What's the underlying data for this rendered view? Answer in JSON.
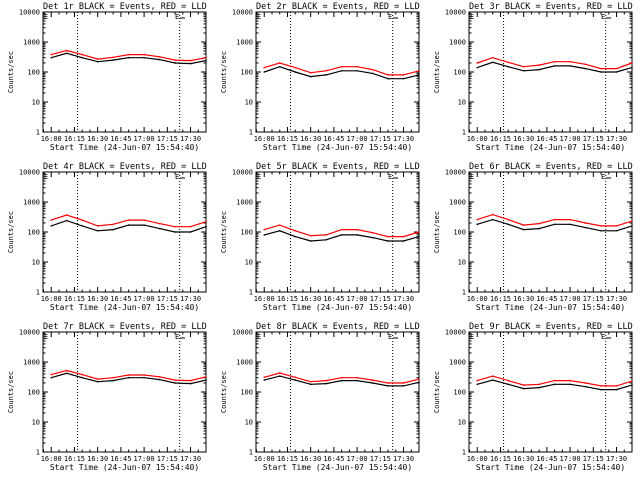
{
  "figure": {
    "x_tick_labels": [
      "16:00",
      "16:15",
      "16:30",
      "16:45",
      "17:00",
      "17:15",
      "17:30"
    ],
    "y_tick_labels": [
      "1",
      "10",
      "100",
      "1000",
      "10000"
    ],
    "ylabel": "Counts/sec",
    "xlabel": "Start Time (24-Jun-07 15:54:40)",
    "marker_label": "E"
  },
  "chart_data": [
    {
      "title": "Det 1r BLACK = Events, RED = LLD",
      "type": "line",
      "ylog": true,
      "ylim": [
        1,
        10000
      ],
      "x_minutes": [
        0,
        10,
        20,
        30,
        40,
        50,
        60,
        70,
        80,
        90,
        100
      ],
      "series": [
        {
          "name": "Events",
          "color": "#000000",
          "values": [
            300,
            420,
            300,
            220,
            250,
            300,
            300,
            260,
            200,
            190,
            240
          ]
        },
        {
          "name": "LLD",
          "color": "#ff0000",
          "values": [
            380,
            520,
            380,
            270,
            310,
            380,
            380,
            320,
            250,
            240,
            300
          ]
        }
      ],
      "vlines_minutes": [
        17,
        83
      ],
      "marker_minutes": 80
    },
    {
      "title": "Det 2r BLACK = Events, RED = LLD",
      "type": "line",
      "ylog": true,
      "ylim": [
        1,
        10000
      ],
      "x_minutes": [
        0,
        10,
        20,
        30,
        40,
        50,
        60,
        70,
        80,
        90,
        100
      ],
      "series": [
        {
          "name": "Events",
          "color": "#000000",
          "values": [
            100,
            150,
            100,
            70,
            80,
            110,
            110,
            90,
            60,
            60,
            80
          ]
        },
        {
          "name": "LLD",
          "color": "#ff0000",
          "values": [
            140,
            200,
            140,
            95,
            110,
            150,
            150,
            120,
            80,
            80,
            110
          ]
        }
      ],
      "vlines_minutes": [
        17,
        83
      ],
      "marker_minutes": 80
    },
    {
      "title": "Det 3r BLACK = Events, RED = LLD",
      "type": "line",
      "ylog": true,
      "ylim": [
        1,
        10000
      ],
      "x_minutes": [
        0,
        10,
        20,
        30,
        40,
        50,
        60,
        70,
        80,
        90,
        100
      ],
      "series": [
        {
          "name": "Events",
          "color": "#000000",
          "values": [
            140,
            210,
            150,
            110,
            120,
            160,
            160,
            130,
            100,
            100,
            140
          ]
        },
        {
          "name": "LLD",
          "color": "#ff0000",
          "values": [
            200,
            300,
            210,
            150,
            170,
            220,
            220,
            180,
            130,
            130,
            200
          ]
        }
      ],
      "vlines_minutes": [
        17,
        83
      ],
      "marker_minutes": 80
    },
    {
      "title": "Det 4r BLACK = Events, RED = LLD",
      "type": "line",
      "ylog": true,
      "ylim": [
        1,
        10000
      ],
      "x_minutes": [
        0,
        10,
        20,
        30,
        40,
        50,
        60,
        70,
        80,
        90,
        100
      ],
      "series": [
        {
          "name": "Events",
          "color": "#000000",
          "values": [
            160,
            240,
            160,
            110,
            120,
            170,
            170,
            130,
            100,
            100,
            150
          ]
        },
        {
          "name": "LLD",
          "color": "#ff0000",
          "values": [
            250,
            370,
            250,
            160,
            180,
            250,
            250,
            190,
            150,
            150,
            220
          ]
        }
      ],
      "vlines_minutes": [
        17,
        83
      ],
      "marker_minutes": 80
    },
    {
      "title": "Det 5r BLACK = Events, RED = LLD",
      "type": "line",
      "ylog": true,
      "ylim": [
        1,
        10000
      ],
      "x_minutes": [
        0,
        10,
        20,
        30,
        40,
        50,
        60,
        70,
        80,
        90,
        100
      ],
      "series": [
        {
          "name": "Events",
          "color": "#000000",
          "values": [
            80,
            110,
            70,
            50,
            55,
            80,
            80,
            65,
            50,
            50,
            70
          ]
        },
        {
          "name": "LLD",
          "color": "#ff0000",
          "values": [
            120,
            170,
            110,
            75,
            80,
            120,
            120,
            95,
            70,
            70,
            100
          ]
        }
      ],
      "vlines_minutes": [
        17,
        83
      ],
      "marker_minutes": 80
    },
    {
      "title": "Det 6r BLACK = Events, RED = LLD",
      "type": "line",
      "ylog": true,
      "ylim": [
        1,
        10000
      ],
      "x_minutes": [
        0,
        10,
        20,
        30,
        40,
        50,
        60,
        70,
        80,
        90,
        100
      ],
      "series": [
        {
          "name": "Events",
          "color": "#000000",
          "values": [
            180,
            260,
            180,
            120,
            130,
            180,
            180,
            140,
            110,
            110,
            160
          ]
        },
        {
          "name": "LLD",
          "color": "#ff0000",
          "values": [
            260,
            380,
            260,
            170,
            190,
            260,
            260,
            200,
            160,
            160,
            230
          ]
        }
      ],
      "vlines_minutes": [
        17,
        83
      ],
      "marker_minutes": 80
    },
    {
      "title": "Det 7r BLACK = Events, RED = LLD",
      "type": "line",
      "ylog": true,
      "ylim": [
        1,
        10000
      ],
      "x_minutes": [
        0,
        10,
        20,
        30,
        40,
        50,
        60,
        70,
        80,
        90,
        100
      ],
      "series": [
        {
          "name": "Events",
          "color": "#000000",
          "values": [
            300,
            420,
            300,
            220,
            240,
            300,
            300,
            260,
            200,
            190,
            250
          ]
        },
        {
          "name": "LLD",
          "color": "#ff0000",
          "values": [
            380,
            520,
            380,
            270,
            300,
            370,
            370,
            320,
            250,
            240,
            320
          ]
        }
      ],
      "vlines_minutes": [
        17,
        83
      ],
      "marker_minutes": 80
    },
    {
      "title": "Det 8r BLACK = Events, RED = LLD",
      "type": "line",
      "ylog": true,
      "ylim": [
        1,
        10000
      ],
      "x_minutes": [
        0,
        10,
        20,
        30,
        40,
        50,
        60,
        70,
        80,
        90,
        100
      ],
      "series": [
        {
          "name": "Events",
          "color": "#000000",
          "values": [
            250,
            340,
            250,
            180,
            190,
            240,
            240,
            200,
            160,
            160,
            210
          ]
        },
        {
          "name": "LLD",
          "color": "#ff0000",
          "values": [
            310,
            430,
            310,
            220,
            240,
            300,
            300,
            250,
            200,
            200,
            270
          ]
        }
      ],
      "vlines_minutes": [
        17,
        83
      ],
      "marker_minutes": 80
    },
    {
      "title": "Det 9r BLACK = Events, RED = LLD",
      "type": "line",
      "ylog": true,
      "ylim": [
        1,
        10000
      ],
      "x_minutes": [
        0,
        10,
        20,
        30,
        40,
        50,
        60,
        70,
        80,
        90,
        100
      ],
      "series": [
        {
          "name": "Events",
          "color": "#000000",
          "values": [
            180,
            250,
            180,
            130,
            140,
            180,
            180,
            150,
            120,
            120,
            170
          ]
        },
        {
          "name": "LLD",
          "color": "#ff0000",
          "values": [
            240,
            340,
            240,
            170,
            180,
            240,
            240,
            200,
            160,
            160,
            230
          ]
        }
      ],
      "vlines_minutes": [
        17,
        83
      ],
      "marker_minutes": 80
    }
  ]
}
